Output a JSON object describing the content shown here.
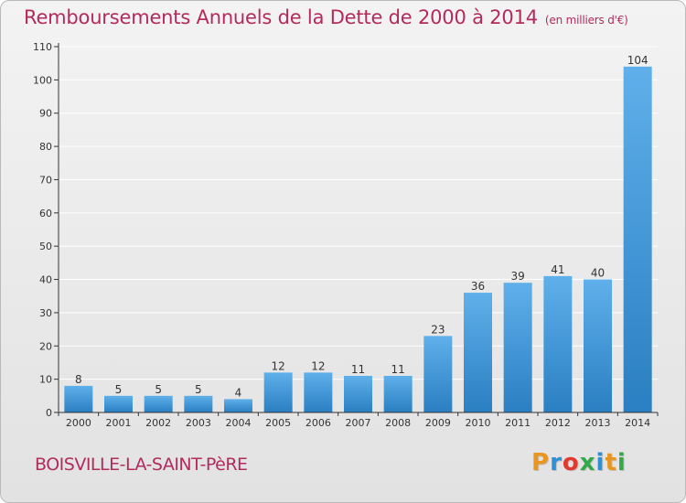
{
  "header": {
    "title": "Remboursements Annuels de la Dette de 2000 à 2014",
    "subtitle": "(en milliers d'€)"
  },
  "footer": {
    "commune": "BOISVILLE-LA-SAINT-PèRE",
    "logo_text": "Proxiti",
    "logo_colors": [
      "#e8961f",
      "#2d8fd5",
      "#e23a2e",
      "#35a84a",
      "#2d8fd5",
      "#e8961f",
      "#35a84a"
    ]
  },
  "colors": {
    "bar_light": "#5fb0ea",
    "bar_dark": "#2a7fc2",
    "grid": "#ffffff",
    "axis": "#333333",
    "title": "#b22b5c"
  },
  "chart_data": {
    "type": "bar",
    "categories": [
      "2000",
      "2001",
      "2002",
      "2003",
      "2004",
      "2005",
      "2006",
      "2007",
      "2008",
      "2009",
      "2010",
      "2011",
      "2012",
      "2013",
      "2014"
    ],
    "values": [
      8,
      5,
      5,
      5,
      4,
      12,
      12,
      11,
      11,
      23,
      36,
      39,
      41,
      40,
      104
    ],
    "title": "Remboursements Annuels de la Dette de 2000 à 2014",
    "ylim": [
      0,
      110
    ],
    "yticks": [
      0,
      10,
      20,
      30,
      40,
      50,
      60,
      70,
      80,
      90,
      100,
      110
    ],
    "grid": true,
    "data_labels": true
  }
}
